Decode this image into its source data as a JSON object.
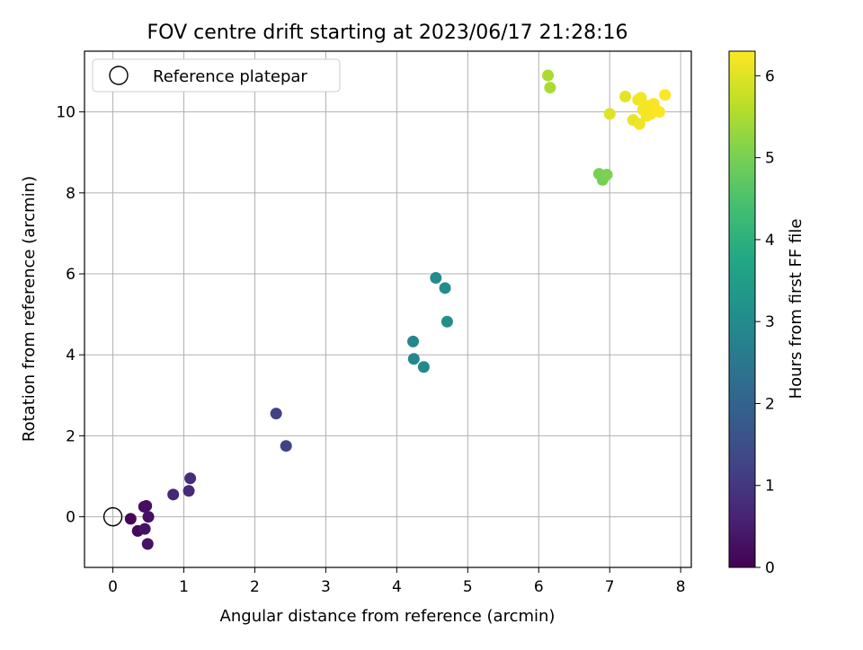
{
  "chart_data": {
    "type": "scatter",
    "title": "FOV centre drift starting at 2023/06/17 21:28:16",
    "xlabel": "Angular distance from reference (arcmin)",
    "ylabel": "Rotation from reference (arcmin)",
    "xlim": [
      -0.4,
      8.15
    ],
    "ylim": [
      -1.25,
      11.5
    ],
    "xticks": [
      "0",
      "1",
      "2",
      "3",
      "4",
      "5",
      "6",
      "7",
      "8"
    ],
    "yticks": [
      "0",
      "2",
      "4",
      "6",
      "8",
      "10"
    ],
    "grid": true,
    "legend": {
      "placement": "top-left",
      "entries": [
        "Reference platepar"
      ]
    },
    "reference": {
      "x": 0,
      "y": 0
    },
    "colorbar": {
      "label": "Hours from first FF file",
      "range": [
        0,
        6.3
      ],
      "ticks": [
        "0",
        "1",
        "2",
        "3",
        "4",
        "5",
        "6"
      ],
      "colormap": "viridis"
    },
    "points": [
      {
        "x": 0.25,
        "y": -0.05,
        "h": 0.1
      },
      {
        "x": 0.35,
        "y": -0.35,
        "h": 0.15
      },
      {
        "x": 0.44,
        "y": 0.25,
        "h": 0.2
      },
      {
        "x": 0.47,
        "y": 0.27,
        "h": 0.25
      },
      {
        "x": 0.5,
        "y": 0.0,
        "h": 0.25
      },
      {
        "x": 0.45,
        "y": -0.3,
        "h": 0.3
      },
      {
        "x": 0.49,
        "y": -0.67,
        "h": 0.3
      },
      {
        "x": 0.85,
        "y": 0.55,
        "h": 0.7
      },
      {
        "x": 1.07,
        "y": 0.64,
        "h": 0.75
      },
      {
        "x": 1.09,
        "y": 0.95,
        "h": 0.8
      },
      {
        "x": 2.3,
        "y": 2.55,
        "h": 1.2
      },
      {
        "x": 2.44,
        "y": 1.75,
        "h": 1.25
      },
      {
        "x": 4.23,
        "y": 4.33,
        "h": 2.9
      },
      {
        "x": 4.24,
        "y": 3.9,
        "h": 2.9
      },
      {
        "x": 4.38,
        "y": 3.7,
        "h": 2.95
      },
      {
        "x": 4.55,
        "y": 5.9,
        "h": 3.0
      },
      {
        "x": 4.68,
        "y": 5.65,
        "h": 3.05
      },
      {
        "x": 4.71,
        "y": 4.82,
        "h": 3.1
      },
      {
        "x": 6.13,
        "y": 10.9,
        "h": 5.5
      },
      {
        "x": 6.16,
        "y": 10.6,
        "h": 5.5
      },
      {
        "x": 6.85,
        "y": 8.47,
        "h": 5.0
      },
      {
        "x": 6.9,
        "y": 8.32,
        "h": 5.0
      },
      {
        "x": 6.96,
        "y": 8.45,
        "h": 5.05
      },
      {
        "x": 7.0,
        "y": 9.95,
        "h": 6.0
      },
      {
        "x": 7.22,
        "y": 10.38,
        "h": 6.05
      },
      {
        "x": 7.33,
        "y": 9.8,
        "h": 6.1
      },
      {
        "x": 7.4,
        "y": 10.3,
        "h": 6.15
      },
      {
        "x": 7.42,
        "y": 9.7,
        "h": 6.15
      },
      {
        "x": 7.44,
        "y": 10.35,
        "h": 6.2
      },
      {
        "x": 7.47,
        "y": 10.05,
        "h": 6.2
      },
      {
        "x": 7.52,
        "y": 9.9,
        "h": 6.2
      },
      {
        "x": 7.54,
        "y": 10.15,
        "h": 6.2
      },
      {
        "x": 7.58,
        "y": 9.95,
        "h": 6.25
      },
      {
        "x": 7.62,
        "y": 10.2,
        "h": 6.25
      },
      {
        "x": 7.65,
        "y": 10.05,
        "h": 6.25
      },
      {
        "x": 7.7,
        "y": 10.0,
        "h": 6.3
      },
      {
        "x": 7.78,
        "y": 10.42,
        "h": 6.3
      }
    ]
  }
}
